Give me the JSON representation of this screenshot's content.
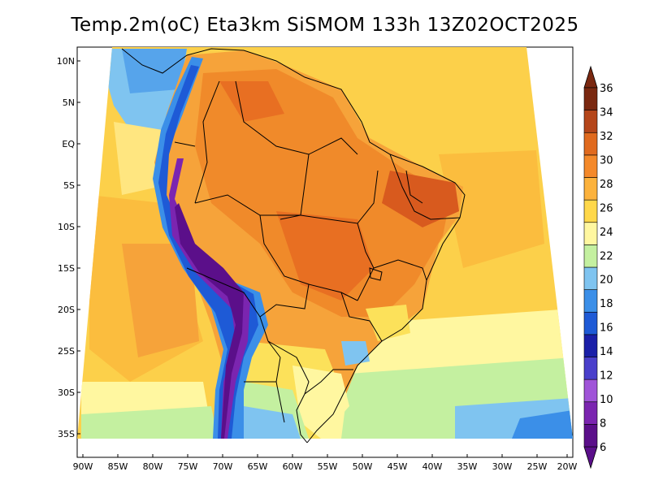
{
  "title": "Temp.2m(oC) Eta3km SiSMOM 133h 13Z02OCT2025",
  "map": {
    "lat_ticks": [
      "10N",
      "5N",
      "EQ",
      "5S",
      "10S",
      "15S",
      "20S",
      "25S",
      "30S",
      "35S"
    ],
    "lon_ticks": [
      "90W",
      "85W",
      "80W",
      "75W",
      "70W",
      "65W",
      "60W",
      "55W",
      "50W",
      "45W",
      "40W",
      "35W",
      "30W",
      "25W",
      "20W"
    ],
    "lat_range": [
      -38,
      11
    ],
    "lon_range": [
      -90,
      -20
    ]
  },
  "colorbar": {
    "labels": [
      "6",
      "8",
      "10",
      "12",
      "14",
      "16",
      "18",
      "20",
      "22",
      "24",
      "26",
      "28",
      "30",
      "32",
      "34",
      "36"
    ],
    "colors": [
      "#5b0f8a",
      "#7b25b0",
      "#a054d8",
      "#4a3fcb",
      "#1a1fa8",
      "#1e5ad6",
      "#3b8fe8",
      "#7fc4f0",
      "#c4f0a0",
      "#fff7a0",
      "#ffd84a",
      "#fcb23c",
      "#f4892a",
      "#e06a1e",
      "#b5461a",
      "#7a2810"
    ]
  }
}
